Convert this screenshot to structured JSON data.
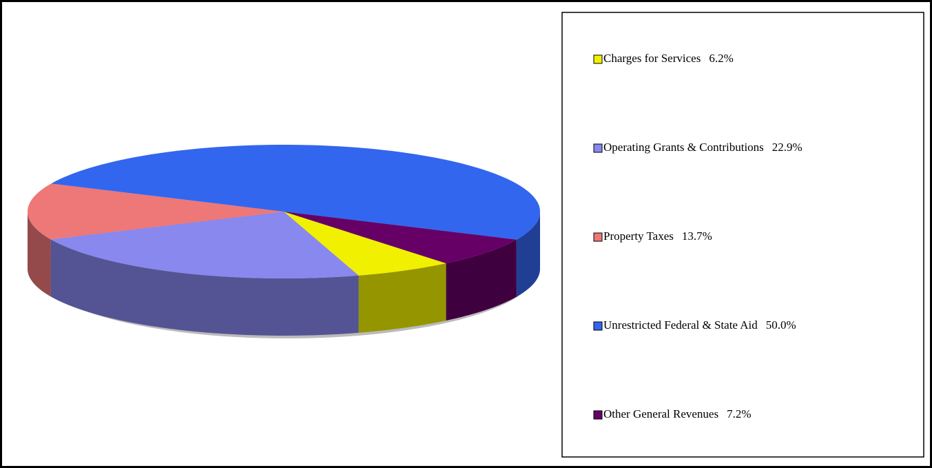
{
  "chart_data": {
    "type": "pie3d",
    "categories": [
      "Charges for Services",
      "Operating Grants & Contributions",
      "Property Taxes",
      "Unrestricted Federal & State Aid",
      "Other General Revenues"
    ],
    "values": [
      6.2,
      22.9,
      13.7,
      50.0,
      7.2
    ],
    "value_labels": [
      "6.2%",
      "22.9%",
      "13.7%",
      "50.0%",
      "7.2%"
    ],
    "colors": [
      "#f0f000",
      "#8888ee",
      "#ee7777",
      "#3366ee",
      "#660066"
    ],
    "legend": "right"
  }
}
